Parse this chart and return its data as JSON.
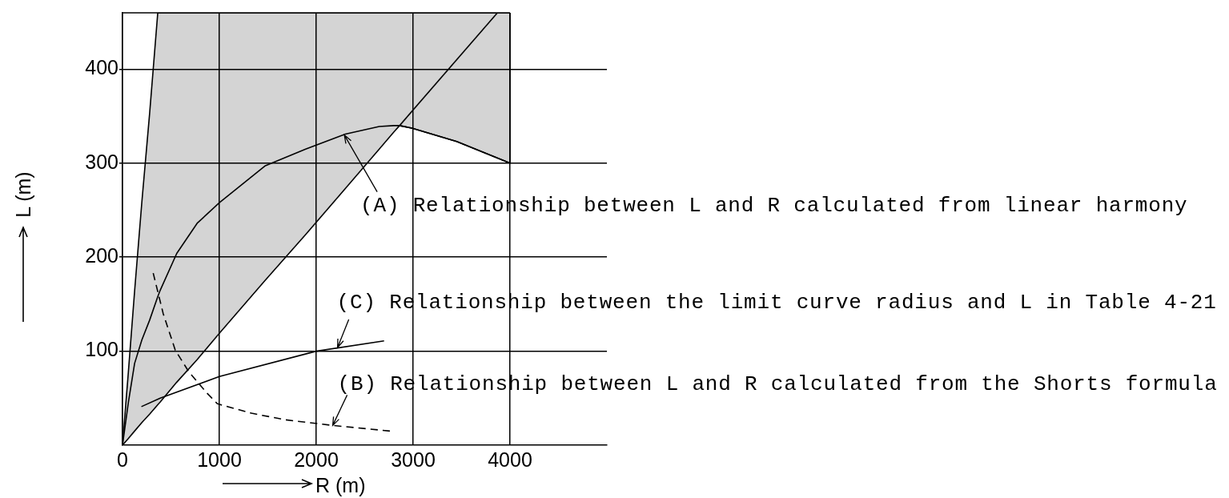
{
  "chart_data": {
    "type": "line",
    "xlabel": "R (m)",
    "ylabel": "L (m)",
    "xlim": [
      0,
      5000
    ],
    "ylim": [
      0,
      460
    ],
    "xticks": [
      0,
      1000,
      2000,
      3000,
      4000
    ],
    "yticks": [
      100,
      200,
      300,
      400
    ],
    "grid": true,
    "marker": "none",
    "series": [
      {
        "color": "#000000",
        "x": [
          2860,
          3870
        ],
        "values": [
          340,
          460
        ]
      },
      {
        "color": "#000000",
        "x": [
          0,
          60,
          125,
          200,
          280,
          364,
          390,
          560,
          770,
          1000,
          1470,
          1890,
          2300,
          2650,
          2800,
          2860,
          3000,
          3450,
          4000
        ],
        "values": [
          0,
          45,
          87,
          112,
          133,
          158,
          165,
          204,
          236,
          258,
          297,
          315,
          331,
          339,
          340,
          340,
          337,
          323,
          300
        ],
        "lower": [
          0,
          7,
          15,
          24,
          33,
          43,
          46,
          67,
          91,
          119,
          175,
          224,
          273,
          315,
          333,
          340,
          337,
          323,
          300
        ],
        "upper": [
          0,
          77,
          164,
          259,
          353,
          460,
          460,
          460,
          460,
          460,
          460,
          460,
          460,
          460,
          460,
          460,
          460,
          460,
          460
        ]
      },
      {
        "color": "#000000",
        "line_style": "dashed",
        "x": [
          317,
          420,
          545,
          685,
          875,
          980,
          1330,
          1680,
          2170,
          2760
        ],
        "values": [
          183,
          140,
          101,
          78,
          55,
          44,
          34,
          27,
          21,
          15
        ]
      },
      {
        "color": "#000000",
        "x": [
          195,
          390,
          1000,
          2000,
          2700
        ],
        "values": [
          41,
          50,
          73,
          100,
          111
        ]
      }
    ],
    "annotations": [
      {
        "text": "(A) Relationship between L and R calculated from linear harmony",
        "x": 2290,
        "y": 330
      },
      {
        "text": "(C) Relationship between the limit curve radius and L in Table 4-21",
        "x": 2220,
        "y": 104
      },
      {
        "text": "(B) Relationship between L and R calculated from the Shorts formula",
        "x": 2170,
        "y": 21
      }
    ]
  }
}
